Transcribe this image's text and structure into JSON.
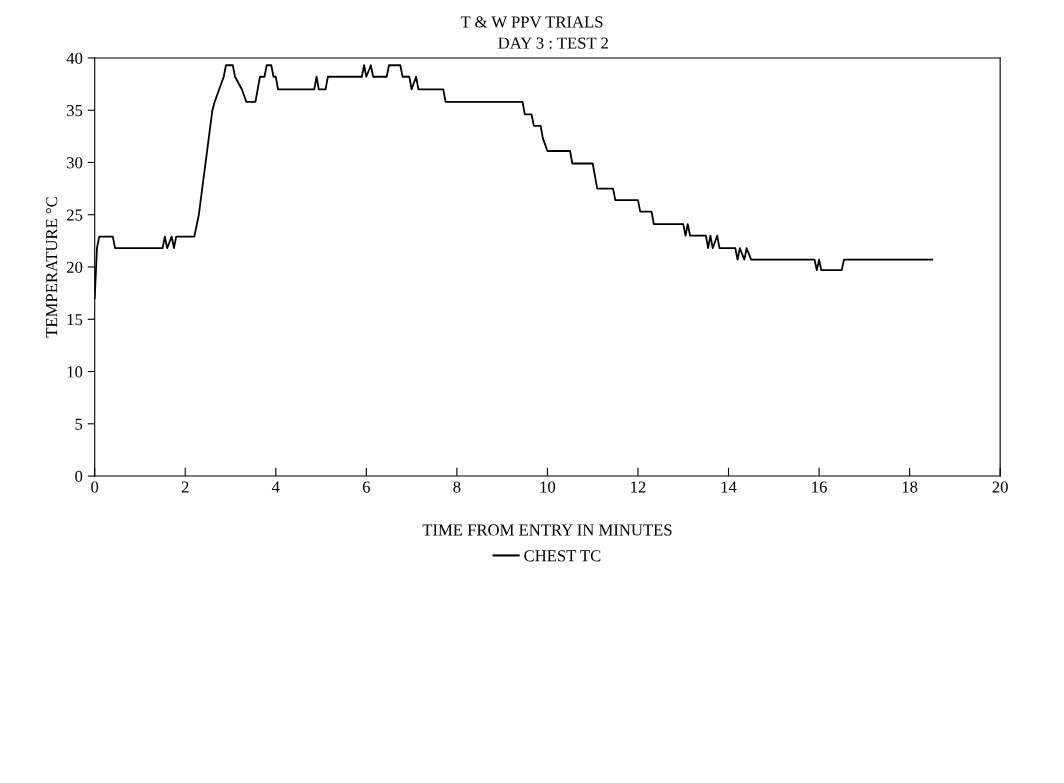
{
  "chart_data": {
    "type": "line",
    "title": "T & W PPV TRIALS",
    "subtitle": "DAY 3 : TEST 2",
    "xlabel": "TIME FROM ENTRY IN MINUTES",
    "ylabel": "TEMPERATURE °C",
    "xlim": [
      0,
      20
    ],
    "xticks": [
      0,
      2,
      4,
      6,
      8,
      10,
      12,
      14,
      16,
      18,
      20
    ],
    "ylim": [
      0,
      40
    ],
    "yticks": [
      0,
      5,
      10,
      15,
      20,
      25,
      30,
      35,
      40
    ],
    "grid": false,
    "legend": "bottom",
    "marker": "none",
    "line_style": "solid",
    "series": [
      {
        "name": "CHEST TC",
        "color": "#000000",
        "x": [
          0,
          0.05,
          0.1,
          0.4,
          0.45,
          1.5,
          1.55,
          1.6,
          1.7,
          1.75,
          1.8,
          2.2,
          2.3,
          2.45,
          2.6,
          2.65,
          2.75,
          2.85,
          2.9,
          3.05,
          3.1,
          3.25,
          3.35,
          3.55,
          3.6,
          3.65,
          3.75,
          3.8,
          3.9,
          3.95,
          4.0,
          4.05,
          4.85,
          4.9,
          4.95,
          5.1,
          5.15,
          5.9,
          5.95,
          6.0,
          6.1,
          6.15,
          6.45,
          6.5,
          6.75,
          6.8,
          6.95,
          7.0,
          7.1,
          7.15,
          7.7,
          7.75,
          9.45,
          9.5,
          9.65,
          9.7,
          9.85,
          9.9,
          10.0,
          10.5,
          10.55,
          11.0,
          11.05,
          11.1,
          11.45,
          11.5,
          12.0,
          12.05,
          12.3,
          12.35,
          13.0,
          13.05,
          13.1,
          13.15,
          13.5,
          13.55,
          13.6,
          13.65,
          13.75,
          13.8,
          14.15,
          14.2,
          14.25,
          14.35,
          14.4,
          14.5,
          15.9,
          15.95,
          16.0,
          16.05,
          16.5,
          16.55,
          18.5
        ],
        "values": [
          17,
          21.8,
          22.9,
          22.9,
          21.8,
          21.8,
          22.9,
          21.8,
          22.9,
          21.8,
          22.9,
          22.9,
          25,
          30,
          35,
          35.8,
          37,
          38.2,
          39.3,
          39.3,
          38.2,
          37,
          35.8,
          35.8,
          37,
          38.2,
          38.2,
          39.3,
          39.3,
          38.2,
          38.2,
          37,
          37,
          38.2,
          37,
          37,
          38.2,
          38.2,
          39.3,
          38.2,
          39.3,
          38.2,
          38.2,
          39.3,
          39.3,
          38.2,
          38.2,
          37,
          38.2,
          37,
          37,
          35.8,
          35.8,
          34.6,
          34.6,
          33.5,
          33.5,
          32.3,
          31.1,
          31.1,
          29.9,
          29.9,
          28.7,
          27.5,
          27.5,
          26.4,
          26.4,
          25.3,
          25.3,
          24.1,
          24.1,
          23.0,
          24.1,
          23.0,
          23.0,
          21.8,
          23.0,
          21.8,
          23.0,
          21.8,
          21.8,
          20.7,
          21.8,
          20.7,
          21.8,
          20.7,
          20.7,
          19.7,
          20.7,
          19.7,
          19.7,
          20.7,
          20.7
        ]
      }
    ]
  }
}
